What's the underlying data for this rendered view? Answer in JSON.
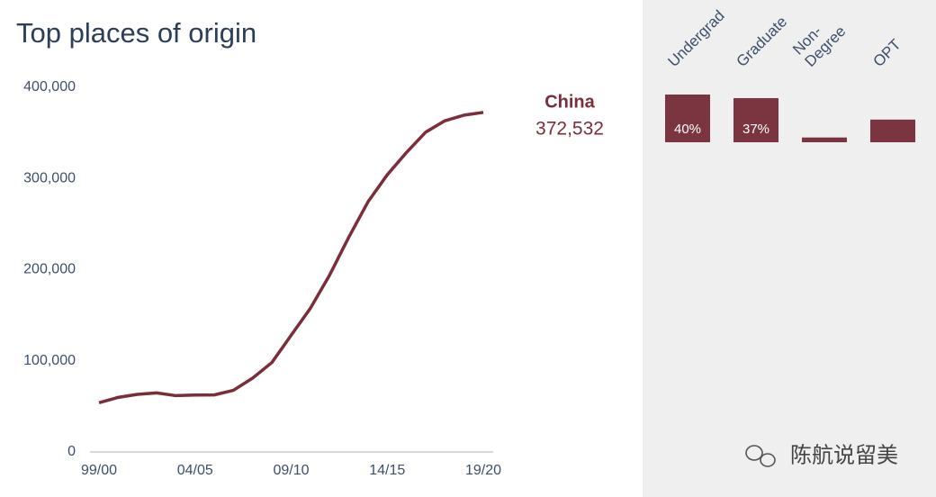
{
  "chart_data": [
    {
      "type": "line",
      "title": "Top places of origin",
      "x": [
        "99/00",
        null,
        null,
        null,
        null,
        "04/05",
        null,
        null,
        null,
        null,
        "09/10",
        null,
        null,
        null,
        null,
        "14/15",
        null,
        null,
        null,
        null,
        "19/20"
      ],
      "series": [
        {
          "name": "China",
          "color": "#7b2d3a",
          "end_label": "372,532",
          "values": [
            54000,
            59900,
            63200,
            64800,
            61800,
            62500,
            62600,
            67700,
            81100,
            98200,
            128000,
            157600,
            194000,
            235600,
            274400,
            304000,
            328500,
            350800,
            363300,
            369500,
            372532
          ]
        }
      ],
      "ylim": [
        0,
        400000
      ],
      "yticks": [
        0,
        {
          "value": 100000,
          "label": "100,000"
        },
        {
          "value": 200000,
          "label": "200,000"
        },
        {
          "value": 300000,
          "label": "300,000"
        },
        {
          "value": 400000,
          "label": "400,000"
        }
      ]
    },
    {
      "type": "bar",
      "categories": [
        "Undergrad",
        "Graduate",
        "Non-\nDegree",
        "OPT"
      ],
      "values": [
        40,
        37,
        4,
        19
      ],
      "value_labels": [
        "40%",
        "37%",
        null,
        null
      ],
      "color": "#7b3540"
    }
  ],
  "watermark": "陈航说留美"
}
